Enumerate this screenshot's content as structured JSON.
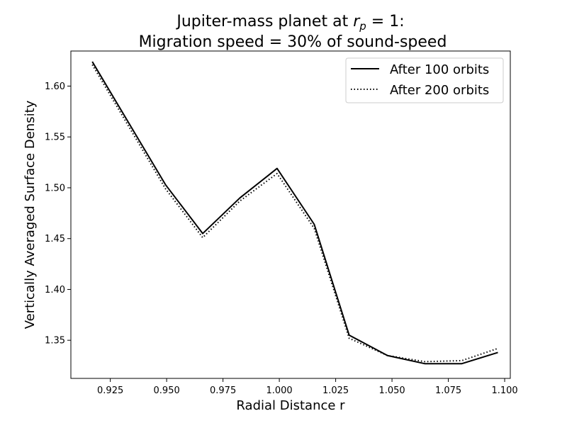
{
  "chart_data": {
    "type": "line",
    "title_line1_prefix": "Jupiter-mass planet at ",
    "title_line1_math_r": "r",
    "title_line1_math_sub": "p",
    "title_line1_math_rest": " = 1:",
    "title_line2": "Migration speed = 30% of sound-speed",
    "xlabel": "Radial Distance r",
    "ylabel": "Vertically Averaged Surface Density",
    "xlim": [
      0.9075,
      1.1025
    ],
    "ylim": [
      1.3125,
      1.6345
    ],
    "xticks": [
      0.925,
      0.95,
      0.975,
      1.0,
      1.025,
      1.05,
      1.075,
      1.1
    ],
    "xtick_labels": [
      "0.925",
      "0.950",
      "0.975",
      "1.000",
      "1.025",
      "1.050",
      "1.075",
      "1.100"
    ],
    "yticks": [
      1.35,
      1.4,
      1.45,
      1.5,
      1.55,
      1.6
    ],
    "ytick_labels": [
      "1.35",
      "1.40",
      "1.45",
      "1.50",
      "1.55",
      "1.60"
    ],
    "grid": false,
    "legend_position": "top-right",
    "x": [
      0.917,
      0.9495,
      0.966,
      0.9825,
      0.999,
      1.0155,
      1.031,
      1.048,
      1.0645,
      1.081,
      1.097
    ],
    "series": [
      {
        "name": "After 100 orbits",
        "style": "solid",
        "color": "#000000",
        "values": [
          1.624,
          1.503,
          1.455,
          1.49,
          1.519,
          1.464,
          1.355,
          1.335,
          1.327,
          1.327,
          1.338
        ]
      },
      {
        "name": "After 200 orbits",
        "style": "dotted",
        "color": "#000000",
        "values": [
          1.621,
          1.499,
          1.451,
          1.487,
          1.514,
          1.46,
          1.352,
          1.335,
          1.329,
          1.33,
          1.342
        ]
      }
    ]
  }
}
